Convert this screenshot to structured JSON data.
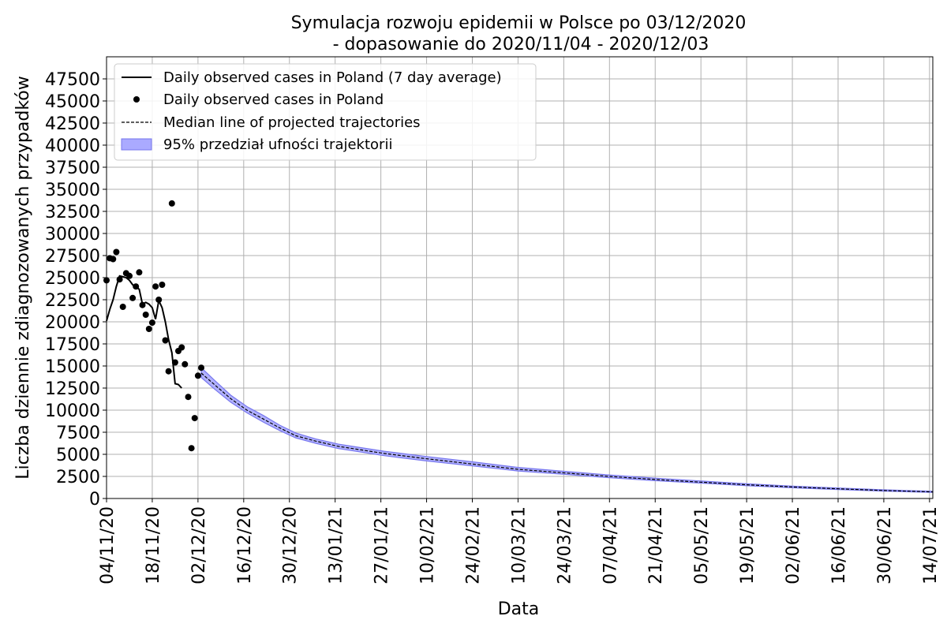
{
  "chart_data": {
    "type": "line",
    "title": "Symulacja rozwoju epidemii w Polsce po 03/12/2020",
    "subtitle": "- dopasowanie do 2020/11/04 - 2020/12/03",
    "xlabel": "Data",
    "ylabel": "Liczba dziennie zdiagnozowanych przypadków",
    "xlim": [
      "2020-11-04",
      "2021-07-15"
    ],
    "ylim": [
      0,
      50000
    ],
    "grid": true,
    "legend_position": "top-left",
    "x_ticks": [
      "04/11/20",
      "18/11/20",
      "02/12/20",
      "16/12/20",
      "30/12/20",
      "13/01/21",
      "27/01/21",
      "10/02/21",
      "24/02/21",
      "10/03/21",
      "24/03/21",
      "07/04/21",
      "21/04/21",
      "05/05/21",
      "19/05/21",
      "02/06/21",
      "16/06/21",
      "30/06/21",
      "14/07/21"
    ],
    "y_ticks": [
      0,
      2500,
      5000,
      7500,
      10000,
      12500,
      15000,
      17500,
      20000,
      22500,
      25000,
      27500,
      30000,
      32500,
      35000,
      37500,
      40000,
      42500,
      45000,
      47500
    ],
    "legend": [
      "Daily observed cases in Poland (7 day average)",
      "Daily observed cases in Poland",
      "Median line of projected trajectories",
      "95% przedział ufności trajektorii"
    ],
    "colors": {
      "observed_avg": "#000000",
      "observed_daily": "#000000",
      "median": "#000000",
      "band_fill": "#aaaaff",
      "band_edge": "#7777ee"
    },
    "series": [
      {
        "name": "Daily observed cases in Poland (7 day average)",
        "kind": "line",
        "points": [
          [
            "2020-11-04",
            20100
          ],
          [
            "2020-11-05",
            21400
          ],
          [
            "2020-11-06",
            22500
          ],
          [
            "2020-11-07",
            24000
          ],
          [
            "2020-11-08",
            25200
          ],
          [
            "2020-11-09",
            25100
          ],
          [
            "2020-11-10",
            25000
          ],
          [
            "2020-11-11",
            24700
          ],
          [
            "2020-11-12",
            24200
          ],
          [
            "2020-11-13",
            23900
          ],
          [
            "2020-11-14",
            23700
          ],
          [
            "2020-11-15",
            22000
          ],
          [
            "2020-11-16",
            22200
          ],
          [
            "2020-11-17",
            22000
          ],
          [
            "2020-11-18",
            21600
          ],
          [
            "2020-11-19",
            20300
          ],
          [
            "2020-11-20",
            22400
          ],
          [
            "2020-11-21",
            21600
          ],
          [
            "2020-11-22",
            20000
          ],
          [
            "2020-11-23",
            18000
          ],
          [
            "2020-11-24",
            16500
          ],
          [
            "2020-11-25",
            13000
          ],
          [
            "2020-11-26",
            12900
          ],
          [
            "2020-11-27",
            12500
          ]
        ]
      },
      {
        "name": "Daily observed cases in Poland",
        "kind": "scatter",
        "points": [
          [
            "2020-11-04",
            24700
          ],
          [
            "2020-11-05",
            27200
          ],
          [
            "2020-11-06",
            27100
          ],
          [
            "2020-11-07",
            27900
          ],
          [
            "2020-11-08",
            24800
          ],
          [
            "2020-11-09",
            21700
          ],
          [
            "2020-11-10",
            25500
          ],
          [
            "2020-11-11",
            25200
          ],
          [
            "2020-11-12",
            22700
          ],
          [
            "2020-11-13",
            24000
          ],
          [
            "2020-11-14",
            25600
          ],
          [
            "2020-11-15",
            21900
          ],
          [
            "2020-11-16",
            20800
          ],
          [
            "2020-11-17",
            19200
          ],
          [
            "2020-11-18",
            19900
          ],
          [
            "2020-11-19",
            24000
          ],
          [
            "2020-11-20",
            22500
          ],
          [
            "2020-11-21",
            24200
          ],
          [
            "2020-11-22",
            17900
          ],
          [
            "2020-11-23",
            14400
          ],
          [
            "2020-11-24",
            33400
          ],
          [
            "2020-11-25",
            15400
          ],
          [
            "2020-11-26",
            16700
          ],
          [
            "2020-11-27",
            17100
          ],
          [
            "2020-11-28",
            15200
          ],
          [
            "2020-11-29",
            11500
          ],
          [
            "2020-11-30",
            5700
          ],
          [
            "2020-12-01",
            9100
          ],
          [
            "2020-12-02",
            13900
          ],
          [
            "2020-12-03",
            14800
          ]
        ]
      },
      {
        "name": "Median line of projected trajectories",
        "kind": "dashed-line",
        "points": [
          [
            "2020-12-03",
            14200
          ],
          [
            "2020-12-07",
            12900
          ],
          [
            "2020-12-12",
            11300
          ],
          [
            "2020-12-17",
            10000
          ],
          [
            "2020-12-22",
            9000
          ],
          [
            "2020-12-27",
            8000
          ],
          [
            "2021-01-01",
            7100
          ],
          [
            "2021-01-07",
            6500
          ],
          [
            "2021-01-14",
            5900
          ],
          [
            "2021-01-21",
            5500
          ],
          [
            "2021-01-28",
            5100
          ],
          [
            "2021-02-10",
            4500
          ],
          [
            "2021-02-24",
            3900
          ],
          [
            "2021-03-10",
            3300
          ],
          [
            "2021-03-24",
            2900
          ],
          [
            "2021-04-07",
            2500
          ],
          [
            "2021-04-21",
            2150
          ],
          [
            "2021-05-05",
            1850
          ],
          [
            "2021-05-19",
            1550
          ],
          [
            "2021-06-02",
            1300
          ],
          [
            "2021-06-16",
            1100
          ],
          [
            "2021-06-30",
            900
          ],
          [
            "2021-07-15",
            750
          ]
        ]
      }
    ],
    "band": {
      "name": "95% przedział ufności trajektorii",
      "x": [
        "2020-12-03",
        "2020-12-07",
        "2020-12-12",
        "2020-12-17",
        "2020-12-22",
        "2020-12-27",
        "2021-01-01",
        "2021-01-07",
        "2021-01-14",
        "2021-01-21",
        "2021-01-28",
        "2021-02-10",
        "2021-02-24",
        "2021-03-10",
        "2021-03-24",
        "2021-04-07",
        "2021-04-21",
        "2021-05-05",
        "2021-05-19",
        "2021-06-02",
        "2021-06-16",
        "2021-06-30",
        "2021-07-15"
      ],
      "lower": [
        13700,
        12400,
        10900,
        9700,
        8650,
        7700,
        6850,
        6250,
        5650,
        5250,
        4850,
        4250,
        3700,
        3120,
        2740,
        2350,
        2020,
        1740,
        1450,
        1210,
        1020,
        830,
        690
      ],
      "upper": [
        14800,
        13400,
        11700,
        10400,
        9400,
        8300,
        7400,
        6750,
        6150,
        5750,
        5350,
        4750,
        4150,
        3520,
        3080,
        2660,
        2300,
        1980,
        1660,
        1400,
        1190,
        980,
        820
      ]
    }
  }
}
